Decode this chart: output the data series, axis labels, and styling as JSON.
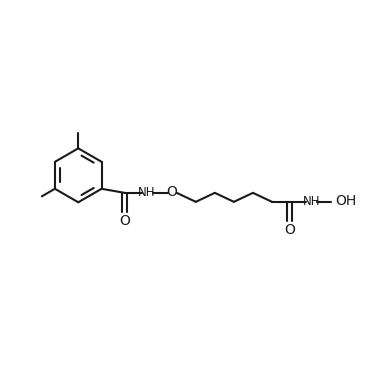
{
  "bg_color": "#ffffff",
  "line_color": "#1a1a1a",
  "line_width": 1.5,
  "font_size": 8.5,
  "fig_size": [
    3.65,
    3.65
  ],
  "dpi": 100,
  "xlim": [
    0,
    10
  ],
  "ylim": [
    0,
    10
  ]
}
